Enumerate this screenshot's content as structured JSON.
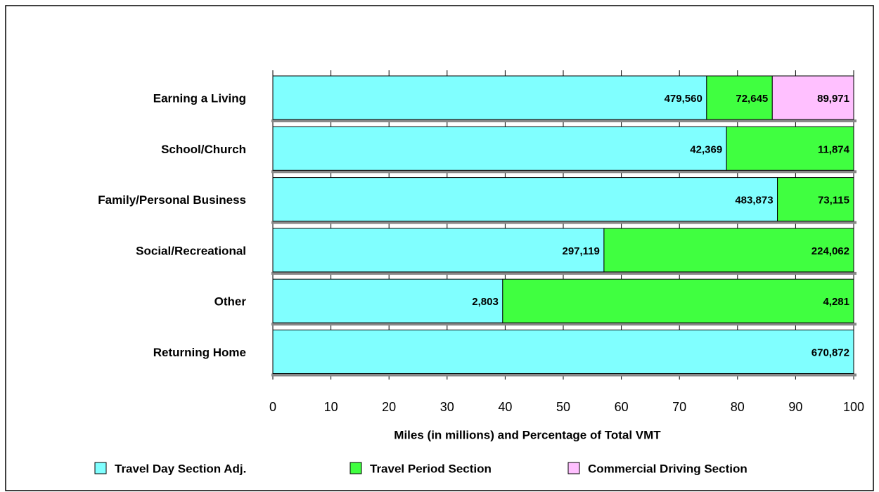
{
  "chart_data": {
    "type": "bar",
    "orientation": "horizontal",
    "stacking": "percent",
    "xlabel": "Miles (in millions) and Percentage of Total VMT",
    "categories": [
      "Earning a Living",
      "School/Church",
      "Family/Personal Business",
      "Social/Recreational",
      "Other",
      "Returning Home"
    ],
    "series": [
      {
        "name": "Travel Day Section Adj.",
        "color": "#80ffff",
        "values": [
          479560,
          42369,
          483873,
          297119,
          2803,
          670872
        ],
        "value_labels": [
          "479,560",
          "42,369",
          "483,873",
          "297,119",
          "2,803",
          "670,872"
        ]
      },
      {
        "name": "Travel Period Section",
        "color": "#40ff40",
        "values": [
          72645,
          11874,
          73115,
          224062,
          4281,
          null
        ],
        "value_labels": [
          "72,645",
          "11,874",
          "73,115",
          "224,062",
          "4,281",
          null
        ]
      },
      {
        "name": "Commercial Driving Section",
        "color": "#ffc0ff",
        "values": [
          89971,
          null,
          null,
          null,
          null,
          null
        ],
        "value_labels": [
          "89,971",
          null,
          null,
          null,
          null,
          null
        ]
      }
    ],
    "xlim": [
      0,
      100
    ],
    "xticks": [
      0,
      10,
      20,
      30,
      40,
      50,
      60,
      70,
      80,
      90,
      100
    ],
    "grid": true,
    "legend": "bottom"
  }
}
